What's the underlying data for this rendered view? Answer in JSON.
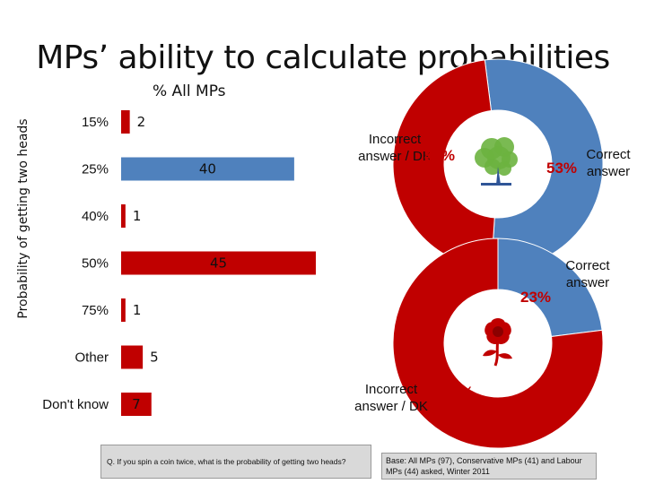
{
  "title": "MPs’ ability to calculate probabilities",
  "subtitle": "% All MPs",
  "footnote_question": "Q. If you spin a coin twice, what is the probability of getting two heads?",
  "footnote_base": "Base: All MPs (97), Conservative MPs (41) and Labour MPs (44) asked, Winter 2011",
  "colors": {
    "red": "#c00000",
    "blue": "#4f81bd",
    "pie_red": "#c00000",
    "pie_blue": "#4f81bd"
  },
  "icons": {
    "top_donut": "tree-logo-icon",
    "bottom_donut": "rose-logo-icon"
  },
  "chart_data": [
    {
      "type": "bar",
      "orientation": "horizontal",
      "title": "MPs’ ability to calculate probabilities",
      "subtitle": "% All MPs",
      "ylabel": "Probability of getting two heads",
      "categories": [
        "15%",
        "25%",
        "40%",
        "50%",
        "75%",
        "Other",
        "Don't know"
      ],
      "values": [
        2,
        40,
        1,
        45,
        1,
        5,
        7
      ],
      "bar_colors": [
        "#c00000",
        "#4f81bd",
        "#c00000",
        "#c00000",
        "#c00000",
        "#c00000",
        "#c00000"
      ],
      "xlim": [
        0,
        45
      ],
      "grid": false
    },
    {
      "type": "pie",
      "style": "donut",
      "slices": [
        {
          "label": "Correct answer",
          "value": 53,
          "text": "53%",
          "color": "#4f81bd"
        },
        {
          "label": "Incorrect answer / DK",
          "value": 47,
          "text": "47%",
          "color": "#c00000"
        }
      ]
    },
    {
      "type": "pie",
      "style": "donut",
      "slices": [
        {
          "label": "Correct answer",
          "value": 23,
          "text": "23%",
          "color": "#4f81bd"
        },
        {
          "label": "Incorrect answer / DK",
          "value": 77,
          "text": "77%",
          "color": "#c00000"
        }
      ]
    }
  ]
}
